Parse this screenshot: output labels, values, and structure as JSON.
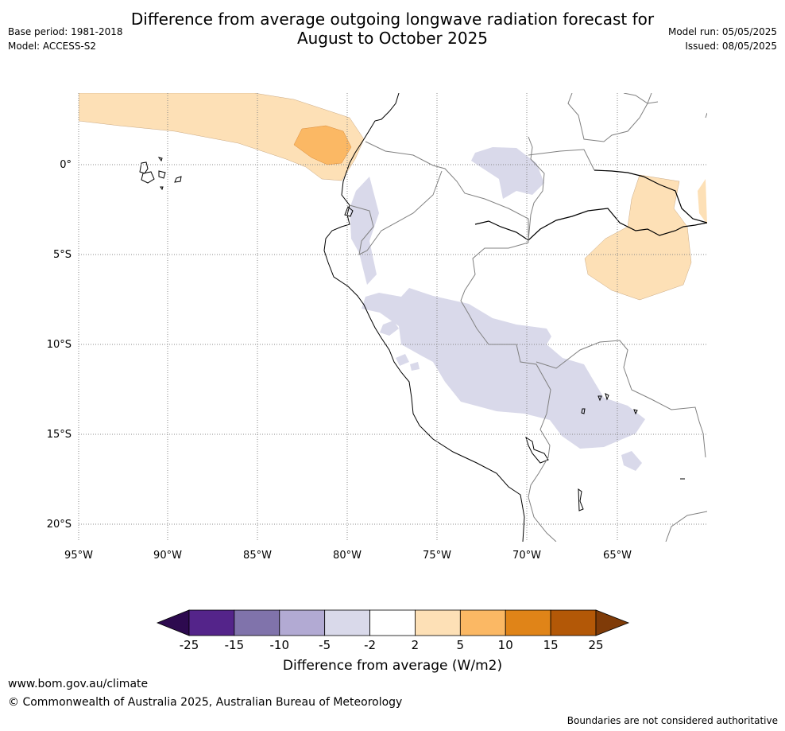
{
  "title_line1": "Difference from average outgoing longwave radiation forecast for",
  "title_line2": "August to October 2025",
  "meta_left": {
    "base_period": "Base period: 1981-2018",
    "model": "Model: ACCESS-S2"
  },
  "meta_right": {
    "model_run": "Model run: 05/05/2025",
    "issued": "Issued: 08/05/2025"
  },
  "map": {
    "lat_labels": [
      "0°",
      "5°S",
      "10°S",
      "15°S",
      "20°S"
    ],
    "lon_labels": [
      "95°W",
      "90°W",
      "85°W",
      "80°W",
      "75°W",
      "70°W",
      "65°W"
    ]
  },
  "colorbar": {
    "ticks": [
      "-25",
      "-15",
      "-10",
      "-5",
      "-2",
      "2",
      "5",
      "10",
      "15",
      "25"
    ],
    "colors": [
      "#2d0a4f",
      "#54248a",
      "#8073ab",
      "#b2aad3",
      "#d9d9ea",
      "#ffffff",
      "#fde0b6",
      "#fbb864",
      "#e08418",
      "#b35807",
      "#7f3b08"
    ],
    "label": "Difference from average (W/m2)"
  },
  "footer": {
    "url": "www.bom.gov.au/climate",
    "copyright": "© Commonwealth of Australia 2025, Australian Bureau of Meteorology",
    "disclaimer": "Boundaries are not considered authoritative"
  }
}
